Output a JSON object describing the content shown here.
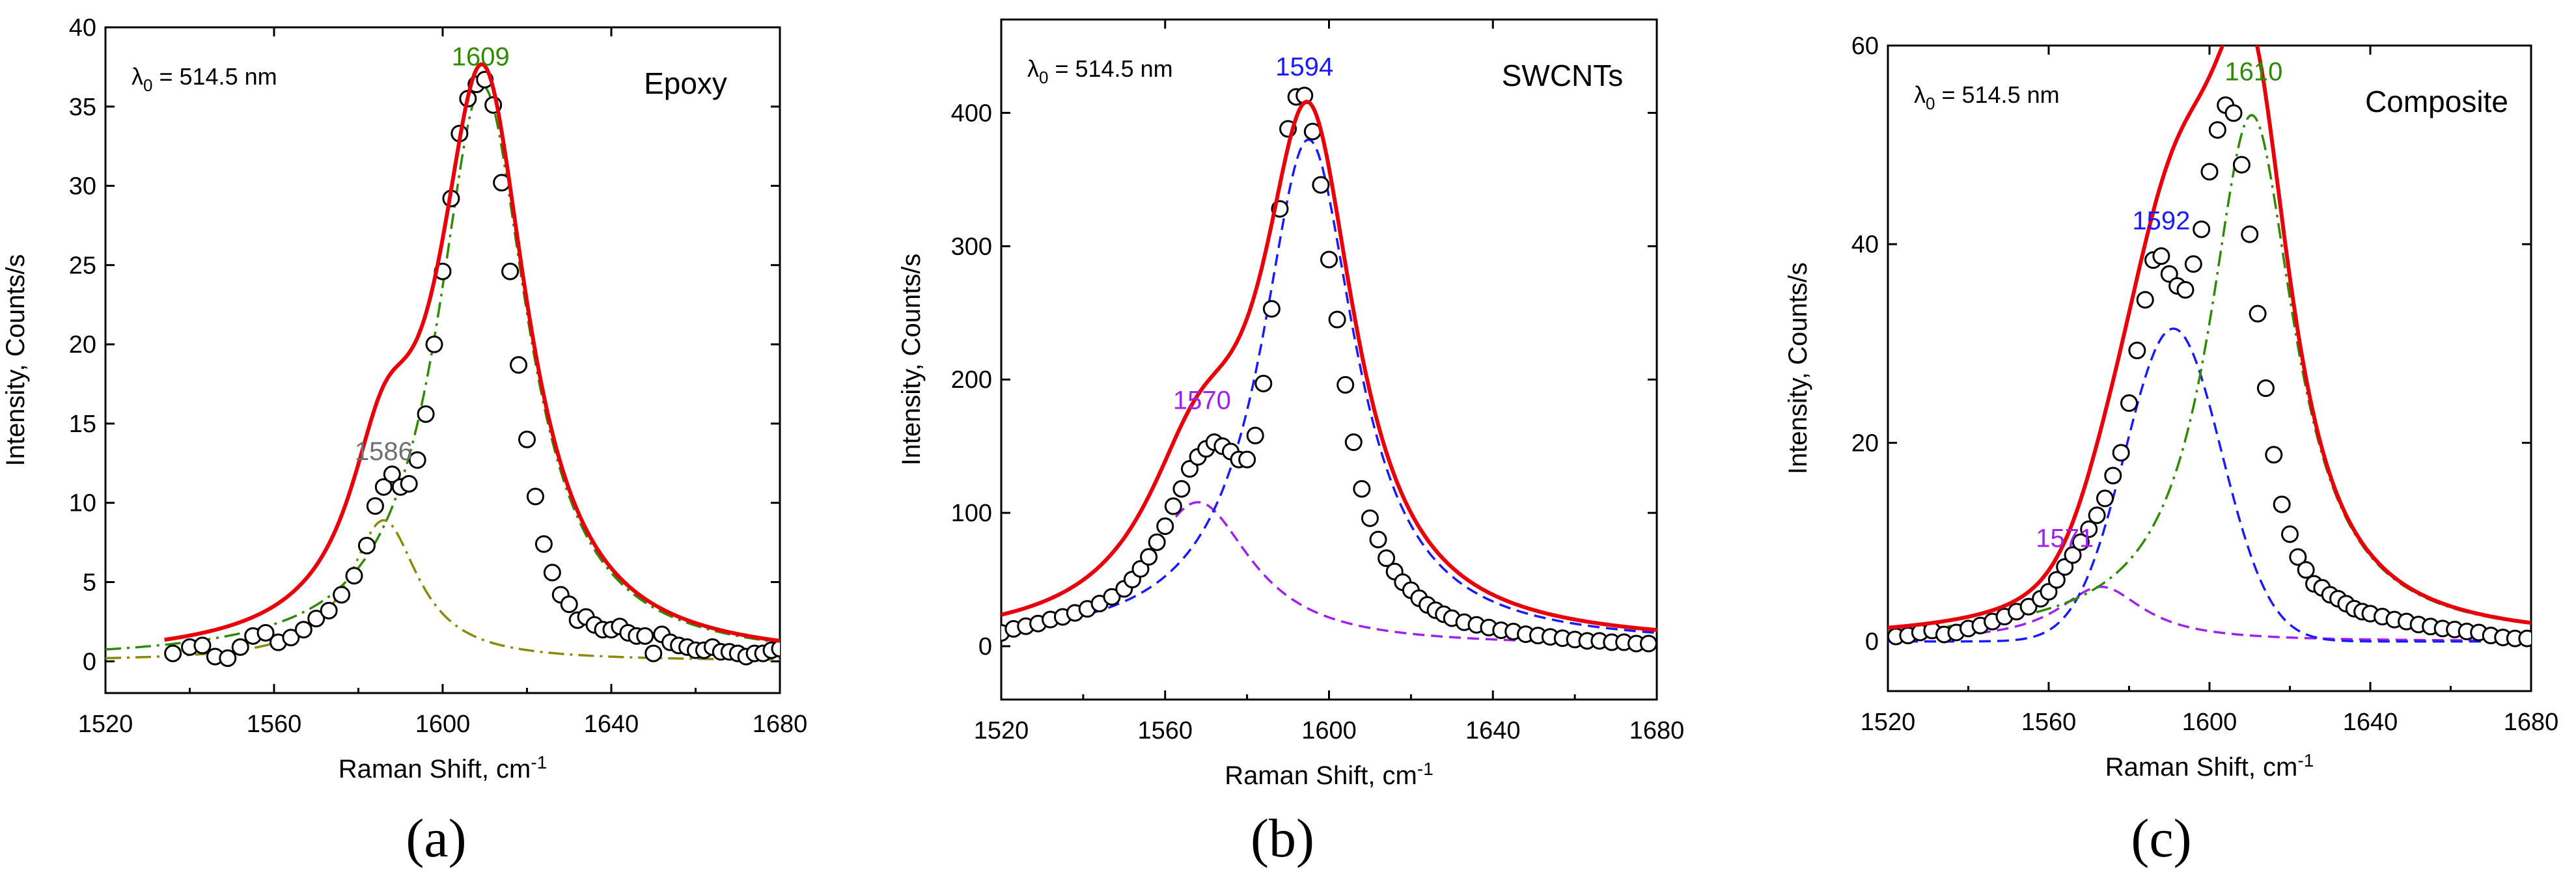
{
  "figure": {
    "panel_labels": [
      "(a)",
      "(b)",
      "(c)"
    ],
    "colors": {
      "fit": "#e8000b",
      "epoxy_peak": "#2e8b00",
      "epoxy_side": "#8a8a00",
      "swcnt_peak": "#1a1aff",
      "side_peak": "#a020f0",
      "label_grey": "#6f6f6f",
      "marker_edge": "#000000"
    }
  },
  "chart_data": [
    {
      "type": "line",
      "title": "Epoxy",
      "annotation": "λ0 = 514.5 nm",
      "xlabel": "Raman Shift, cm-1",
      "ylabel": "Intensity, Counts/s",
      "xlim": [
        1520,
        1680
      ],
      "ylim": [
        -2,
        40
      ],
      "xticks": [
        1520,
        1560,
        1600,
        1640,
        1680
      ],
      "yticks": [
        0,
        5,
        10,
        15,
        20,
        25,
        30,
        35,
        40
      ],
      "peak_labels": [
        {
          "text": "1586",
          "x": 1586,
          "y": 12.7,
          "color": "#6f6f6f"
        },
        {
          "text": "1609",
          "x": 1609,
          "y": 37.6,
          "color": "#2e8b00"
        }
      ],
      "components": [
        {
          "name": "1586",
          "shape": "lorentz",
          "center": 1586,
          "amp": 8.9,
          "width": 10,
          "color": "#8a8a00",
          "dash": "dashdot"
        },
        {
          "name": "1609",
          "shape": "lorentz",
          "center": 1609.5,
          "amp": 36.3,
          "width": 13,
          "color": "#2e8b00",
          "dash": "dashdot"
        }
      ],
      "fit_color": "#e8000b",
      "fit_range": [
        1534,
        1680
      ],
      "points": [
        [
          1536,
          0.5
        ],
        [
          1540,
          0.9
        ],
        [
          1543,
          1.0
        ],
        [
          1546,
          0.3
        ],
        [
          1549,
          0.2
        ],
        [
          1552,
          0.9
        ],
        [
          1555,
          1.6
        ],
        [
          1558,
          1.8
        ],
        [
          1561,
          1.2
        ],
        [
          1564,
          1.5
        ],
        [
          1567,
          2.0
        ],
        [
          1570,
          2.7
        ],
        [
          1573,
          3.2
        ],
        [
          1576,
          4.2
        ],
        [
          1579,
          5.4
        ],
        [
          1582,
          7.3
        ],
        [
          1584,
          9.8
        ],
        [
          1586,
          11.0
        ],
        [
          1588,
          11.8
        ],
        [
          1590,
          11.0
        ],
        [
          1592,
          11.2
        ],
        [
          1594,
          12.7
        ],
        [
          1596,
          15.6
        ],
        [
          1598,
          20.0
        ],
        [
          1600,
          24.6
        ],
        [
          1602,
          29.2
        ],
        [
          1604,
          33.3
        ],
        [
          1606,
          35.5
        ],
        [
          1608,
          36.4
        ],
        [
          1610,
          36.7
        ],
        [
          1612,
          35.1
        ],
        [
          1614,
          30.2
        ],
        [
          1616,
          24.6
        ],
        [
          1618,
          18.7
        ],
        [
          1620,
          14.0
        ],
        [
          1622,
          10.4
        ],
        [
          1624,
          7.4
        ],
        [
          1626,
          5.6
        ],
        [
          1628,
          4.2
        ],
        [
          1630,
          3.6
        ],
        [
          1632,
          2.6
        ],
        [
          1634,
          2.8
        ],
        [
          1636,
          2.3
        ],
        [
          1638,
          2.0
        ],
        [
          1640,
          2.0
        ],
        [
          1642,
          2.2
        ],
        [
          1644,
          1.8
        ],
        [
          1646,
          1.6
        ],
        [
          1648,
          1.6
        ],
        [
          1650,
          0.5
        ],
        [
          1652,
          1.7
        ],
        [
          1654,
          1.2
        ],
        [
          1656,
          1.0
        ],
        [
          1658,
          0.9
        ],
        [
          1660,
          0.7
        ],
        [
          1662,
          0.7
        ],
        [
          1664,
          0.9
        ],
        [
          1666,
          0.6
        ],
        [
          1668,
          0.6
        ],
        [
          1670,
          0.5
        ],
        [
          1672,
          0.3
        ],
        [
          1674,
          0.5
        ],
        [
          1676,
          0.5
        ],
        [
          1678,
          0.7
        ],
        [
          1680,
          0.8
        ]
      ]
    },
    {
      "type": "line",
      "title": "SWCNTs",
      "annotation": "λ0 = 514.5 nm",
      "xlabel": "Raman Shift, cm-1",
      "ylabel": "Intensity, Counts/s",
      "xlim": [
        1520,
        1680
      ],
      "ylim": [
        -40,
        470
      ],
      "xticks": [
        1520,
        1560,
        1600,
        1640,
        1680
      ],
      "yticks": [
        0,
        100,
        200,
        300,
        400
      ],
      "peak_labels": [
        {
          "text": "1570",
          "x": 1569,
          "y": 178,
          "color": "#a020f0"
        },
        {
          "text": "1594",
          "x": 1594,
          "y": 428,
          "color": "#1a1aff"
        }
      ],
      "components": [
        {
          "name": "1570",
          "shape": "lorentz",
          "center": 1568,
          "amp": 108,
          "width": 16,
          "color": "#a020f0",
          "dash": "dash"
        },
        {
          "name": "1594",
          "shape": "lorentz",
          "center": 1595,
          "amp": 380,
          "width": 14,
          "color": "#1a1aff",
          "dash": "dash"
        }
      ],
      "fit_color": "#e8000b",
      "fit_range": [
        1520,
        1680
      ],
      "points": [
        [
          1520,
          10
        ],
        [
          1523,
          13
        ],
        [
          1526,
          15
        ],
        [
          1529,
          17
        ],
        [
          1532,
          20
        ],
        [
          1535,
          22
        ],
        [
          1538,
          25
        ],
        [
          1541,
          28
        ],
        [
          1544,
          32
        ],
        [
          1547,
          37
        ],
        [
          1550,
          43
        ],
        [
          1552,
          50
        ],
        [
          1554,
          58
        ],
        [
          1556,
          67
        ],
        [
          1558,
          78
        ],
        [
          1560,
          90
        ],
        [
          1562,
          105
        ],
        [
          1564,
          118
        ],
        [
          1566,
          133
        ],
        [
          1568,
          142
        ],
        [
          1570,
          148
        ],
        [
          1572,
          153
        ],
        [
          1574,
          150
        ],
        [
          1576,
          146
        ],
        [
          1578,
          140
        ],
        [
          1580,
          140
        ],
        [
          1582,
          158
        ],
        [
          1584,
          197
        ],
        [
          1586,
          253
        ],
        [
          1588,
          328
        ],
        [
          1590,
          388
        ],
        [
          1592,
          412
        ],
        [
          1594,
          413
        ],
        [
          1596,
          386
        ],
        [
          1598,
          346
        ],
        [
          1600,
          290
        ],
        [
          1602,
          245
        ],
        [
          1604,
          196
        ],
        [
          1606,
          153
        ],
        [
          1608,
          118
        ],
        [
          1610,
          96
        ],
        [
          1612,
          80
        ],
        [
          1614,
          66
        ],
        [
          1616,
          56
        ],
        [
          1618,
          48
        ],
        [
          1620,
          42
        ],
        [
          1622,
          36
        ],
        [
          1624,
          31
        ],
        [
          1626,
          27
        ],
        [
          1628,
          24
        ],
        [
          1630,
          21
        ],
        [
          1633,
          18
        ],
        [
          1636,
          16
        ],
        [
          1639,
          14
        ],
        [
          1642,
          12
        ],
        [
          1645,
          11
        ],
        [
          1648,
          9
        ],
        [
          1651,
          8
        ],
        [
          1654,
          7
        ],
        [
          1657,
          6
        ],
        [
          1660,
          5
        ],
        [
          1663,
          4
        ],
        [
          1666,
          4
        ],
        [
          1669,
          3
        ],
        [
          1672,
          3
        ],
        [
          1675,
          2
        ],
        [
          1678,
          2
        ]
      ]
    },
    {
      "type": "line",
      "title": "Composite",
      "annotation": "λ0 = 514.5 nm",
      "xlabel": "Raman Shift, cm-1",
      "ylabel": "Intensity, Counts/s",
      "xlim": [
        1520,
        1680
      ],
      "ylim": [
        -5,
        60
      ],
      "xticks": [
        1520,
        1560,
        1600,
        1640,
        1680
      ],
      "yticks": [
        0,
        20,
        40,
        60
      ],
      "peak_labels": [
        {
          "text": "1571",
          "x": 1564,
          "y": 9.5,
          "color": "#a020f0"
        },
        {
          "text": "1592",
          "x": 1588,
          "y": 41.5,
          "color": "#1a1aff"
        },
        {
          "text": "1610",
          "x": 1611,
          "y": 56.5,
          "color": "#2e8b00"
        }
      ],
      "components": [
        {
          "name": "1571",
          "shape": "lorentz",
          "center": 1573,
          "amp": 5.5,
          "width": 13,
          "color": "#a020f0",
          "dash": "dash"
        },
        {
          "name": "1592",
          "shape": "gauss",
          "center": 1591,
          "amp": 31.5,
          "width": 12,
          "color": "#1a1aff",
          "dash": "dash"
        },
        {
          "name": "1610",
          "shape": "lorentz",
          "center": 1610.5,
          "amp": 53,
          "width": 13,
          "color": "#2e8b00",
          "dash": "dashdot"
        }
      ],
      "fit_color": "#e8000b",
      "fit_range": [
        1520,
        1680
      ],
      "points": [
        [
          1522,
          0.5
        ],
        [
          1525,
          0.6
        ],
        [
          1528,
          0.9
        ],
        [
          1531,
          1.1
        ],
        [
          1534,
          0.7
        ],
        [
          1537,
          0.9
        ],
        [
          1540,
          1.3
        ],
        [
          1543,
          1.6
        ],
        [
          1546,
          2.0
        ],
        [
          1549,
          2.5
        ],
        [
          1552,
          3.0
        ],
        [
          1555,
          3.5
        ],
        [
          1558,
          4.3
        ],
        [
          1560,
          5.0
        ],
        [
          1562,
          6.2
        ],
        [
          1564,
          7.5
        ],
        [
          1566,
          8.7
        ],
        [
          1568,
          10.0
        ],
        [
          1570,
          11.3
        ],
        [
          1572,
          12.7
        ],
        [
          1574,
          14.4
        ],
        [
          1576,
          16.7
        ],
        [
          1578,
          19.0
        ],
        [
          1580,
          24.0
        ],
        [
          1582,
          29.3
        ],
        [
          1584,
          34.4
        ],
        [
          1586,
          38.4
        ],
        [
          1588,
          38.8
        ],
        [
          1590,
          37.0
        ],
        [
          1592,
          35.8
        ],
        [
          1594,
          35.4
        ],
        [
          1596,
          38.0
        ],
        [
          1598,
          41.5
        ],
        [
          1600,
          47.3
        ],
        [
          1602,
          51.5
        ],
        [
          1604,
          54.0
        ],
        [
          1606,
          53.2
        ],
        [
          1608,
          48.0
        ],
        [
          1610,
          41.0
        ],
        [
          1612,
          33.0
        ],
        [
          1614,
          25.5
        ],
        [
          1616,
          18.8
        ],
        [
          1618,
          13.8
        ],
        [
          1620,
          10.8
        ],
        [
          1622,
          8.5
        ],
        [
          1624,
          7.2
        ],
        [
          1626,
          5.8
        ],
        [
          1628,
          5.4
        ],
        [
          1630,
          4.7
        ],
        [
          1632,
          4.3
        ],
        [
          1634,
          3.8
        ],
        [
          1636,
          3.3
        ],
        [
          1638,
          3.0
        ],
        [
          1640,
          2.8
        ],
        [
          1643,
          2.5
        ],
        [
          1646,
          2.2
        ],
        [
          1649,
          2.0
        ],
        [
          1652,
          1.7
        ],
        [
          1655,
          1.5
        ],
        [
          1658,
          1.3
        ],
        [
          1661,
          1.2
        ],
        [
          1664,
          1.0
        ],
        [
          1667,
          0.9
        ],
        [
          1670,
          0.6
        ],
        [
          1673,
          0.4
        ],
        [
          1676,
          0.3
        ],
        [
          1679,
          0.3
        ]
      ]
    }
  ]
}
